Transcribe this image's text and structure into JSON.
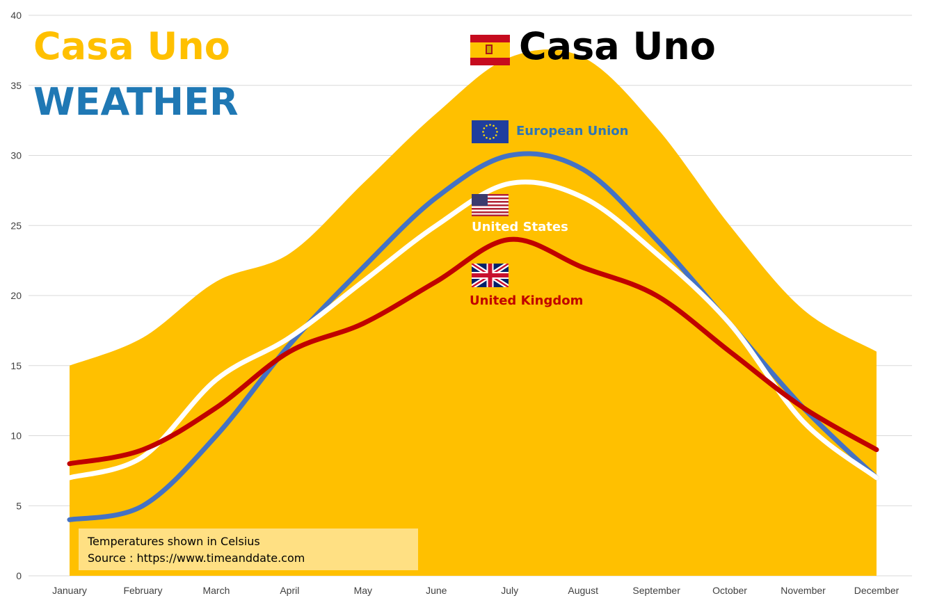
{
  "header": {
    "title_line1": "Casa Uno",
    "title_line2": "WEATHER",
    "brand": "Casa Uno",
    "title_color": "#ffc000",
    "weather_color": "#1f78b4"
  },
  "note": {
    "line1": "Temperatures shown in Celsius",
    "line2": "Source : https://www.timeanddate.com"
  },
  "flags": {
    "spain": "spain-flag-icon",
    "eu": "eu-flag-icon",
    "us": "us-flag-icon",
    "uk": "uk-flag-icon"
  },
  "chart_data": {
    "type": "area",
    "categories": [
      "January",
      "February",
      "March",
      "April",
      "May",
      "June",
      "July",
      "August",
      "September",
      "October",
      "November",
      "December"
    ],
    "ylim": [
      0,
      40
    ],
    "yticks": [
      0,
      5,
      10,
      15,
      20,
      25,
      30,
      35,
      40
    ],
    "grid": true,
    "series": [
      {
        "name": "",
        "kind": "area",
        "color": "#ffc000",
        "values": [
          15,
          17,
          21,
          23,
          28,
          33,
          37,
          37,
          32,
          25,
          19,
          16
        ]
      },
      {
        "name": "European Union",
        "kind": "line",
        "color": "#4472c4",
        "values": [
          4,
          5,
          10,
          16.5,
          22,
          27,
          30,
          29,
          24,
          18,
          12,
          7
        ]
      },
      {
        "name": "United States",
        "kind": "line",
        "color": "#ffffff",
        "values": [
          7,
          8.5,
          14,
          17,
          21,
          25,
          28,
          27,
          23,
          18,
          11,
          7
        ]
      },
      {
        "name": "United Kingdom",
        "kind": "line",
        "color": "#c00000",
        "values": [
          8,
          9,
          12,
          16,
          18,
          21,
          24,
          22,
          20,
          16,
          12,
          9
        ]
      }
    ]
  }
}
